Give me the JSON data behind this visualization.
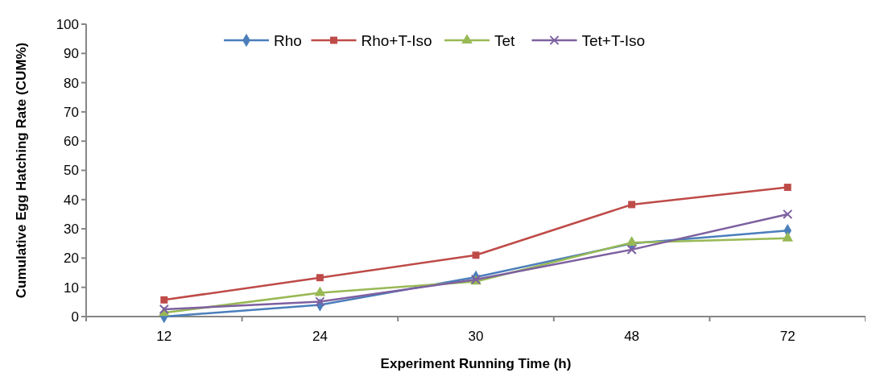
{
  "chart_data": {
    "type": "line",
    "xlabel": "Experiment Running Time (h)",
    "ylabel": "Cumulative Egg Hatching Rate (CUM%)",
    "categories": [
      "12",
      "24",
      "30",
      "48",
      "72"
    ],
    "ylim": [
      0,
      100
    ],
    "yticks": [
      0,
      10,
      20,
      30,
      40,
      50,
      60,
      70,
      80,
      90,
      100
    ],
    "grid": false,
    "legend": "top",
    "line_style": "solid",
    "series": [
      {
        "name": "Rho",
        "color": "#4a7ebb",
        "marker": "diamond",
        "values": [
          0,
          4,
          13.5,
          25,
          29.4
        ]
      },
      {
        "name": "Rho+T-Iso",
        "color": "#be4b48",
        "marker": "square",
        "values": [
          5.7,
          13.3,
          21,
          38.3,
          44.2
        ]
      },
      {
        "name": "Tet",
        "color": "#98b954",
        "marker": "triangle",
        "values": [
          1.3,
          8.1,
          12,
          25.3,
          26.8
        ]
      },
      {
        "name": "Tet+T-Iso",
        "color": "#7d60a0",
        "marker": "cross",
        "values": [
          2.5,
          5.1,
          12.7,
          22.9,
          35
        ]
      }
    ]
  }
}
